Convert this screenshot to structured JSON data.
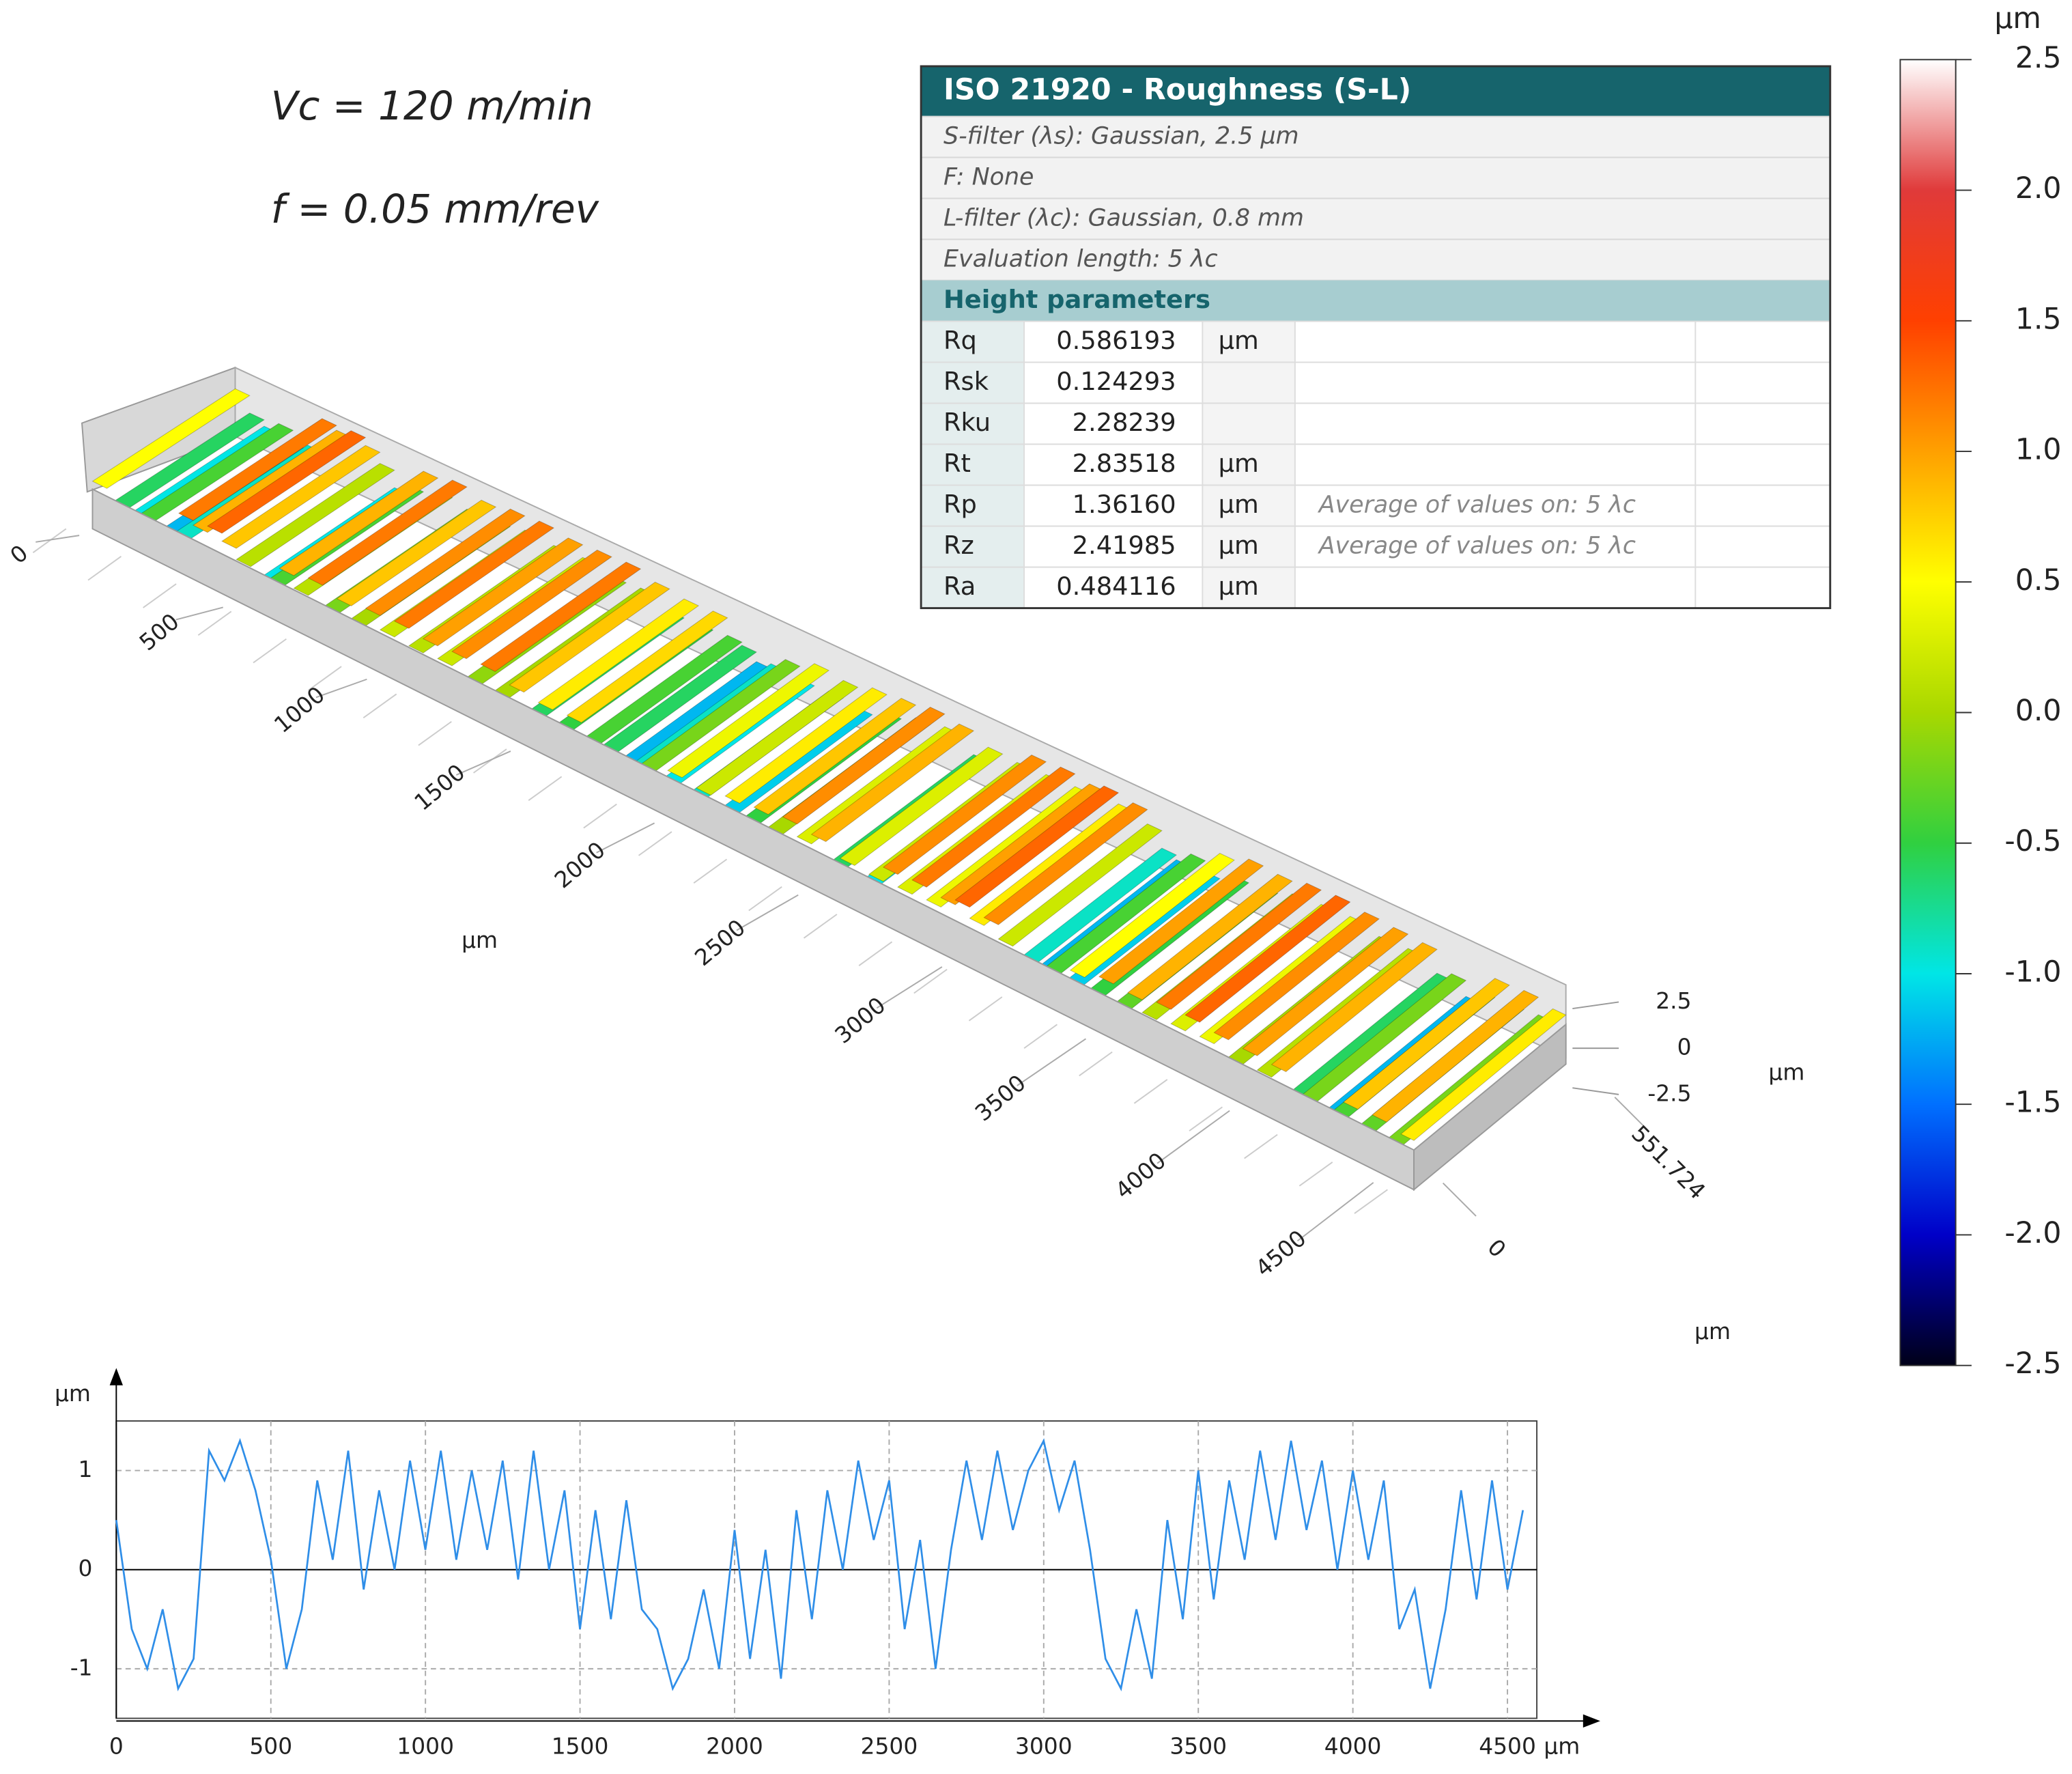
{
  "annotations": [
    "Vc = 120 m/min",
    "f = 0.05 mm/rev"
  ],
  "table": {
    "title": "ISO 21920 - Roughness (S-L)",
    "filters": [
      "S-filter (λs): Gaussian, 2.5 µm",
      "F: None",
      "L-filter (λc): Gaussian, 0.8 mm",
      "Evaluation length: 5 λc"
    ],
    "section": "Height parameters",
    "rows": [
      {
        "name": "Rq",
        "value": "0.586193",
        "unit": "µm"
      },
      {
        "name": "Rsk",
        "value": "0.124293"
      },
      {
        "name": "Rku",
        "value": "2.28239"
      },
      {
        "name": "Rt",
        "value": "2.83518",
        "unit": "µm"
      },
      {
        "name": "Rp",
        "value": "1.36160",
        "unit": "µm",
        "note": "Average of values on: 5 λc"
      },
      {
        "name": "Rz",
        "value": "2.41985",
        "unit": "µm",
        "note": "Average of values on: 5 λc"
      },
      {
        "name": "Ra",
        "value": "0.484116",
        "unit": "µm"
      }
    ]
  },
  "colorbar": {
    "unit": "µm",
    "lim": [
      -2.5,
      2.5
    ],
    "colors": [
      "#000018",
      "#0000c8",
      "#0070ff",
      "#00e6e6",
      "#30d040",
      "#a8d800",
      "#ffff00",
      "#ffa000",
      "#ff4000",
      "#e03a3a",
      "#ffffff"
    ],
    "ticks": [
      2.5,
      {
        "value": 2,
        "label": "2.0"
      },
      1.5,
      {
        "value": 1,
        "label": "1.0"
      },
      0.5,
      {
        "value": 0,
        "label": "0.0"
      },
      -0.5,
      {
        "value": -1,
        "label": "-1.0"
      },
      -1.5,
      {
        "value": -2,
        "label": "-2.0"
      },
      -2.5
    ]
  },
  "surface": {
    "xticks": [
      0,
      500,
      1000,
      1500,
      2000,
      2500,
      3000,
      3500,
      4000,
      4500
    ],
    "xlabel": "µm",
    "ylim": [
      0,
      551.724
    ],
    "yticks": [
      0,
      551.724
    ],
    "ylabel": "µm",
    "zticks": [
      2.5,
      0,
      -2.5
    ],
    "zlabel": "µm"
  },
  "chart_data": {
    "type": "line",
    "color": "#2f8ee8",
    "xlabel": "µm",
    "ylabel": "µm",
    "xlim": [
      0,
      4595
    ],
    "ylim": [
      -1.5,
      1.5
    ],
    "xticks": [
      0,
      500,
      1000,
      1500,
      2000,
      2500,
      3000,
      3500,
      4000,
      4500
    ],
    "yticks": [
      1,
      0,
      -1
    ],
    "grid": true,
    "x": [
      0,
      50,
      100,
      150,
      200,
      250,
      300,
      350,
      400,
      450,
      500,
      550,
      600,
      650,
      700,
      750,
      800,
      850,
      900,
      950,
      1000,
      1050,
      1100,
      1150,
      1200,
      1250,
      1300,
      1350,
      1400,
      1450,
      1500,
      1550,
      1600,
      1650,
      1700,
      1750,
      1800,
      1850,
      1900,
      1950,
      2000,
      2050,
      2100,
      2150,
      2200,
      2250,
      2300,
      2350,
      2400,
      2450,
      2500,
      2550,
      2600,
      2650,
      2700,
      2750,
      2800,
      2850,
      2900,
      2950,
      3000,
      3050,
      3100,
      3150,
      3200,
      3250,
      3300,
      3350,
      3400,
      3450,
      3500,
      3550,
      3600,
      3650,
      3700,
      3750,
      3800,
      3850,
      3900,
      3950,
      4000,
      4050,
      4100,
      4150,
      4200,
      4250,
      4300,
      4350,
      4400,
      4450,
      4500,
      4550
    ],
    "values": [
      0.5,
      -0.6,
      -1.0,
      -0.4,
      -1.2,
      -0.9,
      1.2,
      0.9,
      1.3,
      0.8,
      0.1,
      -1.0,
      -0.4,
      0.9,
      0.1,
      1.2,
      -0.2,
      0.8,
      0.0,
      1.1,
      0.2,
      1.2,
      0.1,
      1.0,
      0.2,
      1.1,
      -0.1,
      1.2,
      0.0,
      0.8,
      -0.6,
      0.6,
      -0.5,
      0.7,
      -0.4,
      -0.6,
      -1.2,
      -0.9,
      -0.2,
      -1.0,
      0.4,
      -0.9,
      0.2,
      -1.1,
      0.6,
      -0.5,
      0.8,
      0.0,
      1.1,
      0.3,
      0.9,
      -0.6,
      0.3,
      -1.0,
      0.2,
      1.1,
      0.3,
      1.2,
      0.4,
      1.0,
      1.3,
      0.6,
      1.1,
      0.2,
      -0.9,
      -1.2,
      -0.4,
      -1.1,
      0.5,
      -0.5,
      1.0,
      -0.3,
      0.9,
      0.1,
      1.2,
      0.3,
      1.3,
      0.4,
      1.1,
      0.0,
      1.0,
      0.1,
      0.9,
      -0.6,
      -0.2,
      -1.2,
      -0.4,
      0.8,
      -0.3,
      0.9,
      -0.2,
      0.6
    ]
  }
}
